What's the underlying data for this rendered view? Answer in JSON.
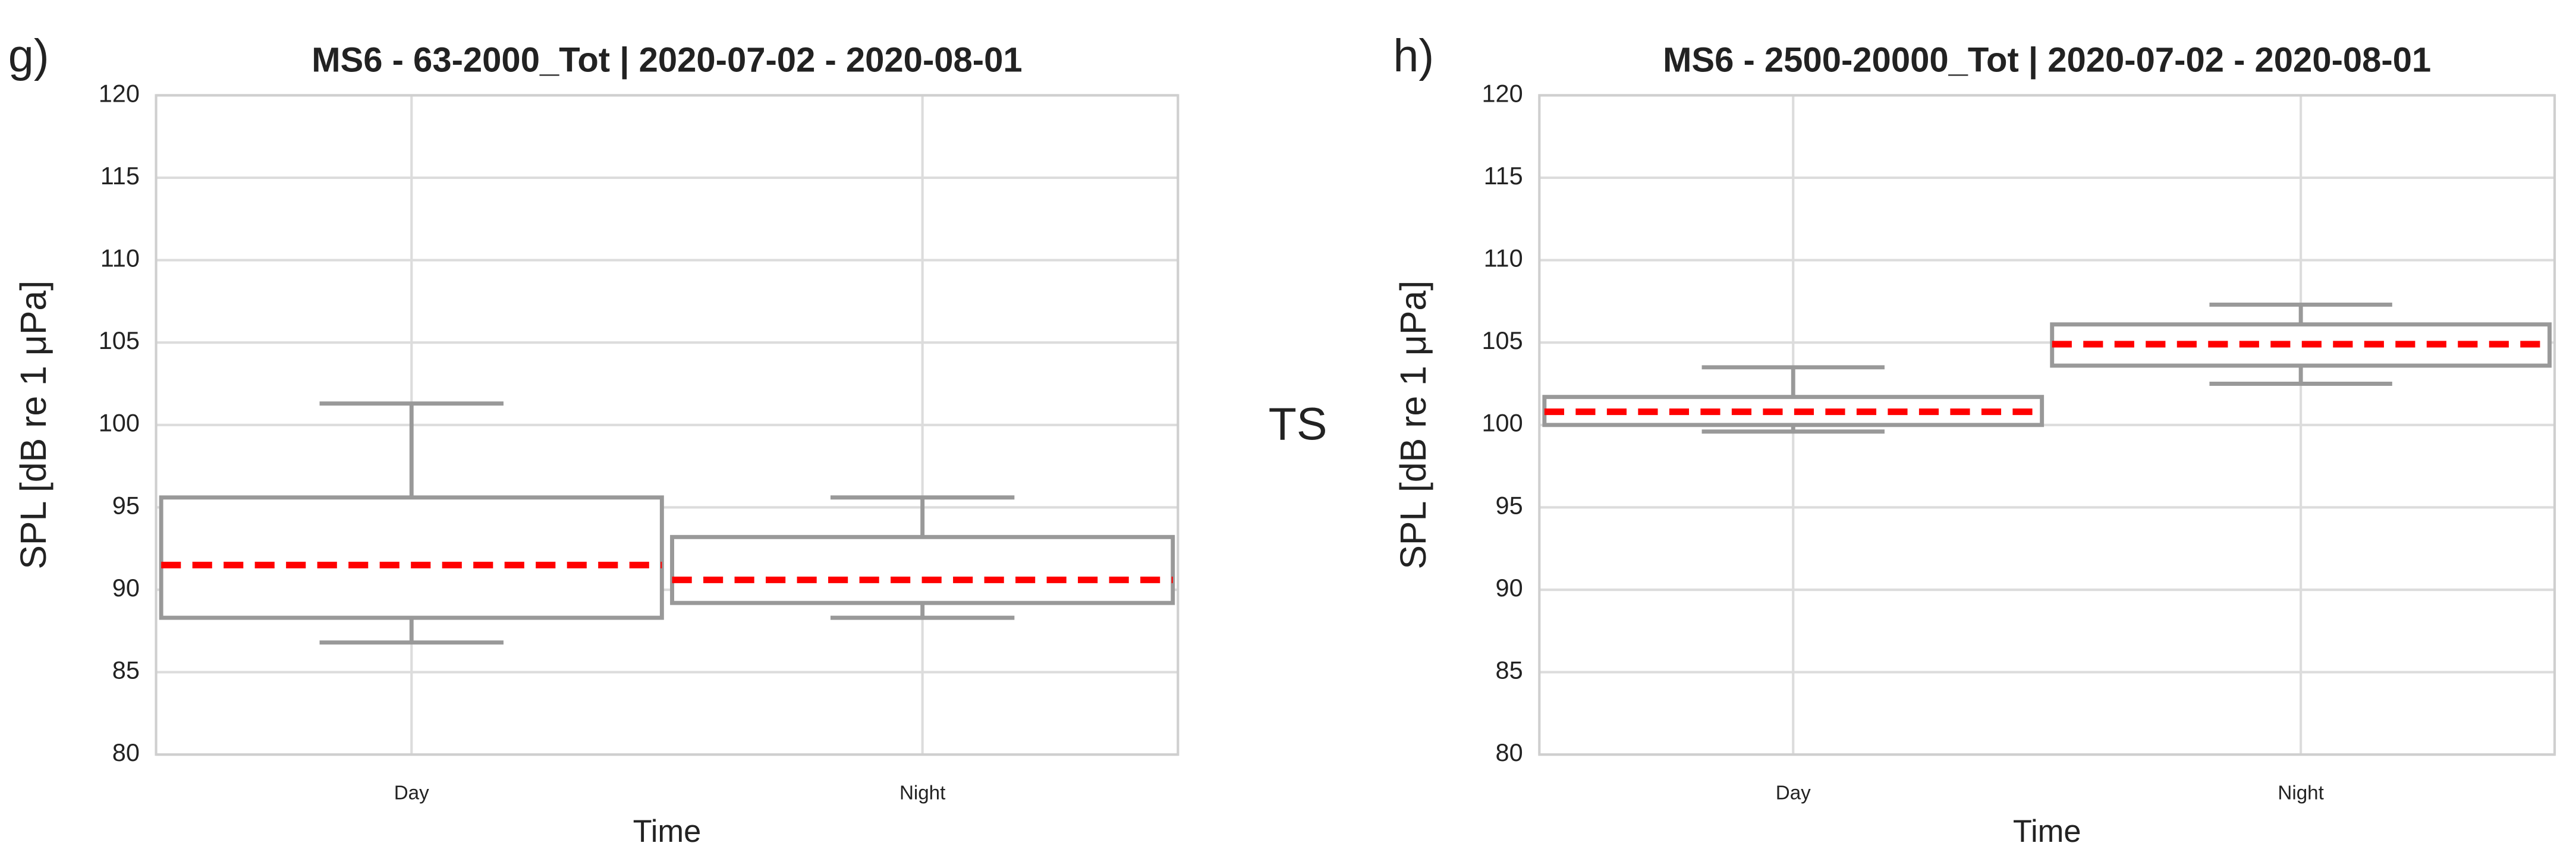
{
  "annotation": "TS",
  "chart_data": [
    {
      "type": "box",
      "panel_label": "g)",
      "title": "MS6 - 63-2000_Tot | 2020-07-02 - 2020-08-01",
      "xlabel": "Time",
      "ylabel": "SPL [dB re 1 μPa]",
      "categories": [
        "Day",
        "Night"
      ],
      "whisker_low": [
        86.8,
        88.3
      ],
      "q1": [
        88.3,
        89.2
      ],
      "median": [
        91.5,
        90.6
      ],
      "q3": [
        95.6,
        93.2
      ],
      "whisker_high": [
        101.3,
        95.6
      ],
      "box_color": "#999999",
      "median_color": "#ff0000",
      "ylim": [
        80,
        120
      ],
      "yticks": [
        80,
        85,
        90,
        95,
        100,
        105,
        110,
        115,
        120
      ],
      "grid": true
    },
    {
      "type": "box",
      "panel_label": "h)",
      "title": "MS6 - 2500-20000_Tot | 2020-07-02 - 2020-08-01",
      "xlabel": "Time",
      "ylabel": "SPL [dB re 1 μPa]",
      "categories": [
        "Day",
        "Night"
      ],
      "whisker_low": [
        99.6,
        102.5
      ],
      "q1": [
        100.0,
        103.6
      ],
      "median": [
        100.8,
        104.9
      ],
      "q3": [
        101.7,
        106.1
      ],
      "whisker_high": [
        103.5,
        107.3
      ],
      "box_color": "#999999",
      "median_color": "#ff0000",
      "ylim": [
        80,
        120
      ],
      "yticks": [
        80,
        85,
        90,
        95,
        100,
        105,
        110,
        115,
        120
      ],
      "grid": true
    }
  ]
}
